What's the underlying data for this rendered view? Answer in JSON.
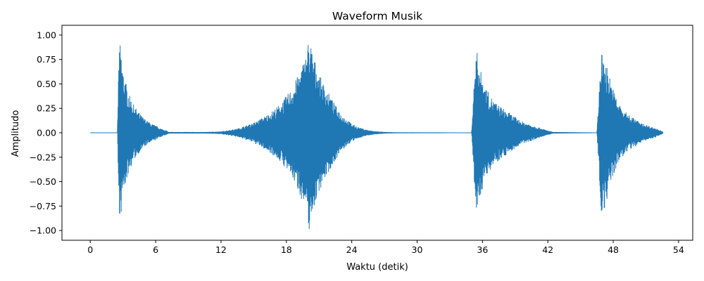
{
  "chart_data": {
    "type": "line",
    "title": "Waveform Musik",
    "xlabel": "Waktu (detik)",
    "ylabel": "Amplitudo",
    "xlim": [
      -2.6,
      55.3
    ],
    "ylim": [
      -1.1,
      1.1
    ],
    "xticks": [
      0,
      6,
      12,
      18,
      24,
      30,
      36,
      42,
      48,
      54
    ],
    "xtick_labels": [
      "0",
      "6",
      "12",
      "18",
      "24",
      "30",
      "36",
      "42",
      "48",
      "54"
    ],
    "yticks": [
      1.0,
      0.75,
      0.5,
      0.25,
      0.0,
      -0.25,
      -0.5,
      -0.75,
      -1.0
    ],
    "ytick_labels": [
      "1.00",
      "0.75",
      "0.50",
      "0.25",
      "0.00",
      "−0.25",
      "−0.50",
      "−0.75",
      "−1.00"
    ],
    "grid": false,
    "color": "#1f77b4",
    "series": [
      {
        "values_description_x": [
          0.0,
          2.5,
          2.6,
          2.75,
          3.0,
          3.3,
          3.6,
          4.0,
          4.5,
          5.0,
          5.5,
          6.0,
          6.5,
          7.0,
          7.2,
          9.0,
          10.5,
          12.0,
          13.5,
          15.0,
          16.5,
          17.5,
          18.5,
          19.2,
          19.8,
          20.1,
          20.4,
          21.0,
          21.5,
          22.0,
          22.5,
          23.0,
          23.5,
          24.0,
          24.5,
          25.0,
          25.5,
          26.0,
          27.0,
          28.0,
          35.0,
          35.4,
          35.6,
          35.8,
          36.2,
          36.6,
          37.0,
          37.5,
          38.0,
          38.5,
          39.0,
          39.5,
          40.0,
          40.5,
          41.0,
          41.5,
          42.0,
          42.5,
          46.5,
          46.9,
          47.0,
          47.2,
          47.5,
          48.0,
          48.5,
          49.0,
          49.5,
          50.0,
          50.5,
          51.0,
          51.5,
          52.0,
          52.4,
          52.6
        ],
        "envelope": [
          0.0,
          0.0,
          0.7,
          0.93,
          0.65,
          0.5,
          0.38,
          0.28,
          0.2,
          0.14,
          0.1,
          0.07,
          0.04,
          0.02,
          0.005,
          0.005,
          0.005,
          0.01,
          0.04,
          0.1,
          0.2,
          0.3,
          0.45,
          0.62,
          0.8,
          1.0,
          0.82,
          0.6,
          0.48,
          0.38,
          0.28,
          0.2,
          0.14,
          0.09,
          0.06,
          0.04,
          0.025,
          0.015,
          0.005,
          0.002,
          0.0,
          0.85,
          0.8,
          0.65,
          0.5,
          0.4,
          0.33,
          0.28,
          0.24,
          0.2,
          0.16,
          0.12,
          0.1,
          0.08,
          0.06,
          0.04,
          0.02,
          0.005,
          0.0,
          0.82,
          0.8,
          0.78,
          0.65,
          0.45,
          0.3,
          0.22,
          0.18,
          0.14,
          0.1,
          0.08,
          0.06,
          0.04,
          0.02,
          0.0
        ]
      }
    ]
  }
}
